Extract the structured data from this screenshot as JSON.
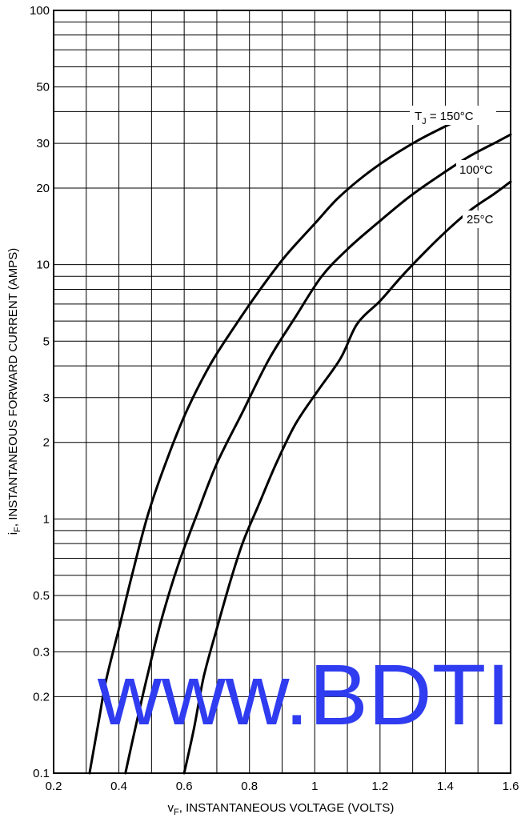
{
  "chart_data": {
    "type": "line",
    "title": "",
    "xlabel_main": "v",
    "xlabel_sub": "F",
    "xlabel_rest": ", INSTANTANEOUS VOLTAGE (VOLTS)",
    "ylabel_main": "i",
    "ylabel_sub": "F",
    "ylabel_rest": ", INSTANTANEOUS FORWARD CURRENT (AMPS)",
    "xlim": [
      0.2,
      1.6
    ],
    "ylim": [
      0.1,
      100
    ],
    "yscale": "log",
    "grid": true,
    "x_ticks": [
      0.2,
      0.4,
      0.6,
      0.8,
      1,
      1.2,
      1.4,
      1.6
    ],
    "x_tick_labels": [
      "0.2",
      "0.4",
      "0.6",
      "0.8",
      "1",
      "1.2",
      "1.4",
      "1.6"
    ],
    "y_ticks": [
      0.1,
      0.2,
      0.3,
      0.5,
      1,
      2,
      3,
      5,
      10,
      20,
      30,
      50,
      100
    ],
    "y_tick_labels": [
      "0.1",
      "0.2",
      "0.3",
      "0.5",
      "1",
      "2",
      "3",
      "5",
      "10",
      "20",
      "30",
      "50",
      "100"
    ],
    "series": [
      {
        "name": "T_J = 150°C",
        "x": [
          0.31,
          0.34,
          0.36,
          0.4,
          0.44,
          0.49,
          0.55,
          0.61,
          0.68,
          0.75,
          0.83,
          0.91,
          1.0,
          1.07,
          1.15,
          1.23,
          1.32,
          1.41,
          1.47
        ],
        "y": [
          0.1,
          0.165,
          0.23,
          0.37,
          0.6,
          1.05,
          1.75,
          2.7,
          4.05,
          5.6,
          7.9,
          10.8,
          14.5,
          18.2,
          22.3,
          26.4,
          31.0,
          35.5,
          38.5
        ]
      },
      {
        "name": "100°C",
        "x": [
          0.42,
          0.45,
          0.49,
          0.53,
          0.58,
          0.64,
          0.7,
          0.78,
          0.86,
          0.94,
          1.02,
          1.1,
          1.19,
          1.29,
          1.38,
          1.47,
          1.56,
          1.6
        ],
        "y": [
          0.1,
          0.15,
          0.25,
          0.4,
          0.65,
          1.05,
          1.65,
          2.65,
          4.25,
          6.2,
          8.95,
          11.5,
          14.5,
          18.5,
          22.3,
          26.5,
          30.5,
          32.5
        ]
      },
      {
        "name": "25°C",
        "x": [
          0.6,
          0.63,
          0.66,
          0.7,
          0.74,
          0.78,
          0.83,
          0.88,
          0.94,
          1.01,
          1.08,
          1.13,
          1.2,
          1.27,
          1.34,
          1.41,
          1.48,
          1.55,
          1.6
        ],
        "y": [
          0.1,
          0.15,
          0.24,
          0.37,
          0.56,
          0.81,
          1.15,
          1.63,
          2.35,
          3.2,
          4.3,
          5.85,
          7.2,
          9.1,
          11.3,
          13.8,
          16.5,
          19.0,
          21.2
        ]
      }
    ],
    "annotations": {
      "tj_main": "T",
      "tj_sub": "J",
      "tj_rest": " = 150°C",
      "label_100": "100°C",
      "label_25": "25°C"
    }
  },
  "watermark": "www.BDTI",
  "colors": {
    "watermark": "#2f3cf0",
    "line": "#000000",
    "background": "#ffffff"
  }
}
